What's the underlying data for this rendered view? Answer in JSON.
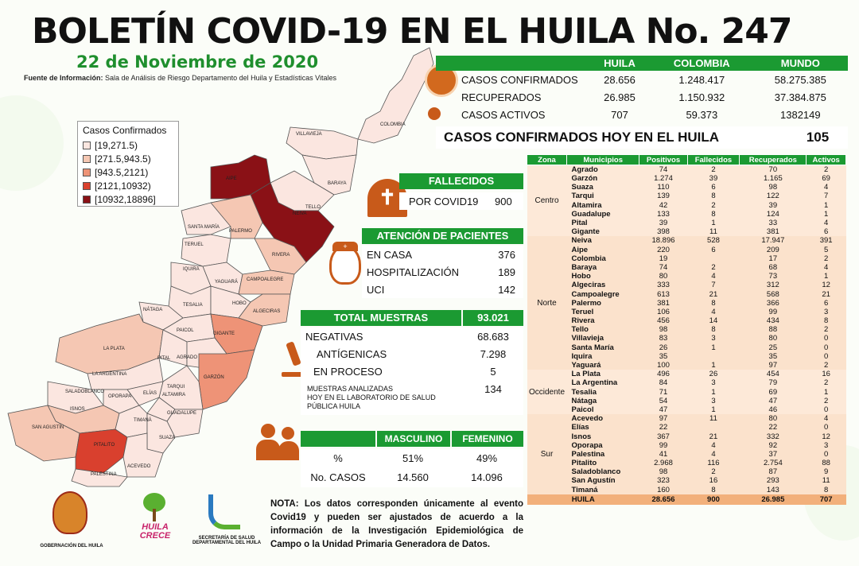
{
  "header": {
    "title": "BOLETÍN COVID-19 EN EL HUILA No. 247",
    "date": "22 de Noviembre de 2020",
    "source_label": "Fuente de Información:",
    "source_text": "Sala de Análisis de Riesgo Departamento del Huila y Estadísticas Vitales"
  },
  "summary": {
    "columns": [
      "HUILA",
      "COLOMBIA",
      "MUNDO"
    ],
    "rows": [
      {
        "label": "CASOS CONFIRMADOS",
        "values": [
          "28.656",
          "1.248.417",
          "58.275.385"
        ]
      },
      {
        "label": "RECUPERADOS",
        "values": [
          "26.985",
          "1.150.932",
          "37.384.875"
        ]
      },
      {
        "label": "CASOS ACTIVOS",
        "values": [
          "707",
          "59.373",
          "1382149"
        ]
      }
    ],
    "hoy_label": "CASOS CONFIRMADOS  HOY EN EL HUILA",
    "hoy_value": "105"
  },
  "legend": {
    "title": "Casos Confirmados",
    "items": [
      {
        "label": "[19,271.5)",
        "color": "#fbe6e0"
      },
      {
        "label": "[271.5,943.5)",
        "color": "#f5c7b3"
      },
      {
        "label": "[943.5,2121)",
        "color": "#ee9377"
      },
      {
        "label": "[2121,10932)",
        "color": "#d9402e"
      },
      {
        "label": "[10932,18896]",
        "color": "#8a1116"
      }
    ]
  },
  "map_labels": [
    "COLOMBIA",
    "VILLAVIEJA",
    "BARAYA",
    "AIPE",
    "TELLO",
    "NEIVA",
    "SANTA MARÍA",
    "PALERMO",
    "RIVERA",
    "TERUEL",
    "IQUIRA",
    "YAGUARÁ",
    "CAMPOALEGRE",
    "TESALIA",
    "HOBO",
    "NÁTAGA",
    "ALGECIRAS",
    "PAICOL",
    "GIGANTE",
    "LA PLATA",
    "PITAL",
    "AGRADO",
    "GARZÓN",
    "LA ARGENTINA",
    "TARQUI",
    "SALADOBLANCO",
    "OPORAPA",
    "ELÍAS",
    "ALTAMIRA",
    "ISNOS",
    "TIMANÁ",
    "GUADALUPE",
    "SAN AGUSTÍN",
    "SUAZA",
    "PITALITO",
    "ACEVEDO",
    "PALESTINA"
  ],
  "fallecidos": {
    "title": "FALLECIDOS",
    "label": "POR COVID19",
    "value": "900"
  },
  "atencion": {
    "title": "ATENCIÓN DE PACIENTES",
    "rows": [
      {
        "label": "EN CASA",
        "value": "376"
      },
      {
        "label": "HOSPITALIZACIÓN",
        "value": "189"
      },
      {
        "label": "UCI",
        "value": "142"
      }
    ]
  },
  "muestras": {
    "title": "TOTAL MUESTRAS",
    "total": "93.021",
    "rows": [
      {
        "label": "NEGATIVAS",
        "value": "68.683"
      },
      {
        "label": "ANTÍGENICAS",
        "value": "7.298"
      },
      {
        "label": "EN PROCESO",
        "value": "5"
      }
    ],
    "lab_label_1": "MUESTRAS ANALIZADAS",
    "lab_label_2": "HOY EN EL LABORATORIO DE SALUD PÚBLICA HUILA",
    "lab_value": "134"
  },
  "sexo": {
    "col1": "MASCULINO",
    "col2": "FEMENINO",
    "row1_label": "%",
    "row1": [
      "51%",
      "49%"
    ],
    "row2_label": "No. CASOS",
    "row2": [
      "14.560",
      "14.096"
    ]
  },
  "nota": "NOTA: Los datos corresponden únicamente al evento Covid19 y pueden ser ajustados de acuerdo a la información de la Investigación Epidemiológica de Campo o la Unidad Primaria Generadora de Datos.",
  "logos": {
    "gob": "GOBERNACIÓN DEL HUILA",
    "crece_1": "HUILA",
    "crece_2": "CRECE",
    "salud_1": "SECRETARÍA DE SALUD",
    "salud_2": "DEPARTAMENTAL DEL HUILA"
  },
  "municipios": {
    "headers": [
      "Zona",
      "Municipios",
      "Positivos",
      "Fallecidos",
      "Recuperados",
      "Activos"
    ],
    "zones": [
      {
        "name": "Centro",
        "rows": [
          [
            "Agrado",
            "74",
            "2",
            "70",
            "2"
          ],
          [
            "Garzón",
            "1.274",
            "39",
            "1.165",
            "69"
          ],
          [
            "Suaza",
            "110",
            "6",
            "98",
            "4"
          ],
          [
            "Tarqui",
            "139",
            "8",
            "122",
            "7"
          ],
          [
            "Altamira",
            "42",
            "2",
            "39",
            "1"
          ],
          [
            "Guadalupe",
            "133",
            "8",
            "124",
            "1"
          ],
          [
            "Pital",
            "39",
            "1",
            "33",
            "4"
          ],
          [
            "Gigante",
            "398",
            "11",
            "381",
            "6"
          ]
        ]
      },
      {
        "name": "Norte",
        "rows": [
          [
            "Neiva",
            "18.896",
            "528",
            "17.947",
            "391"
          ],
          [
            "Aipe",
            "220",
            "6",
            "209",
            "5"
          ],
          [
            "Colombia",
            "19",
            "",
            "17",
            "2"
          ],
          [
            "Baraya",
            "74",
            "2",
            "68",
            "4"
          ],
          [
            "Hobo",
            "80",
            "4",
            "73",
            "1"
          ],
          [
            "Algeciras",
            "333",
            "7",
            "312",
            "12"
          ],
          [
            "Campoalegre",
            "613",
            "21",
            "568",
            "21"
          ],
          [
            "Palermo",
            "381",
            "8",
            "366",
            "6"
          ],
          [
            "Teruel",
            "106",
            "4",
            "99",
            "3"
          ],
          [
            "Rivera",
            "456",
            "14",
            "434",
            "8"
          ],
          [
            "Tello",
            "98",
            "8",
            "88",
            "2"
          ],
          [
            "Villavieja",
            "83",
            "3",
            "80",
            "0"
          ],
          [
            "Santa María",
            "26",
            "1",
            "25",
            "0"
          ],
          [
            "Iquira",
            "35",
            "",
            "35",
            "0"
          ],
          [
            "Yaguará",
            "100",
            "1",
            "97",
            "2"
          ]
        ]
      },
      {
        "name": "Occidente",
        "rows": [
          [
            "La Plata",
            "496",
            "26",
            "454",
            "16"
          ],
          [
            "La Argentina",
            "84",
            "3",
            "79",
            "2"
          ],
          [
            "Tesalia",
            "71",
            "1",
            "69",
            "1"
          ],
          [
            "Nátaga",
            "54",
            "3",
            "47",
            "2"
          ],
          [
            "Paicol",
            "47",
            "1",
            "46",
            "0"
          ]
        ]
      },
      {
        "name": "Sur",
        "rows": [
          [
            "Acevedo",
            "97",
            "11",
            "80",
            "4"
          ],
          [
            "Elías",
            "22",
            "",
            "22",
            "0"
          ],
          [
            "Isnos",
            "367",
            "21",
            "332",
            "12"
          ],
          [
            "Oporapa",
            "99",
            "4",
            "92",
            "3"
          ],
          [
            "Palestina",
            "41",
            "4",
            "37",
            "0"
          ],
          [
            "Pitalito",
            "2.968",
            "116",
            "2.754",
            "88"
          ],
          [
            "Saladoblanco",
            "98",
            "2",
            "87",
            "9"
          ],
          [
            "San Agustín",
            "323",
            "16",
            "293",
            "11"
          ],
          [
            "Timaná",
            "160",
            "8",
            "143",
            "8"
          ]
        ]
      }
    ],
    "total": [
      "HUILA",
      "28.656",
      "900",
      "26.985",
      "707"
    ]
  }
}
